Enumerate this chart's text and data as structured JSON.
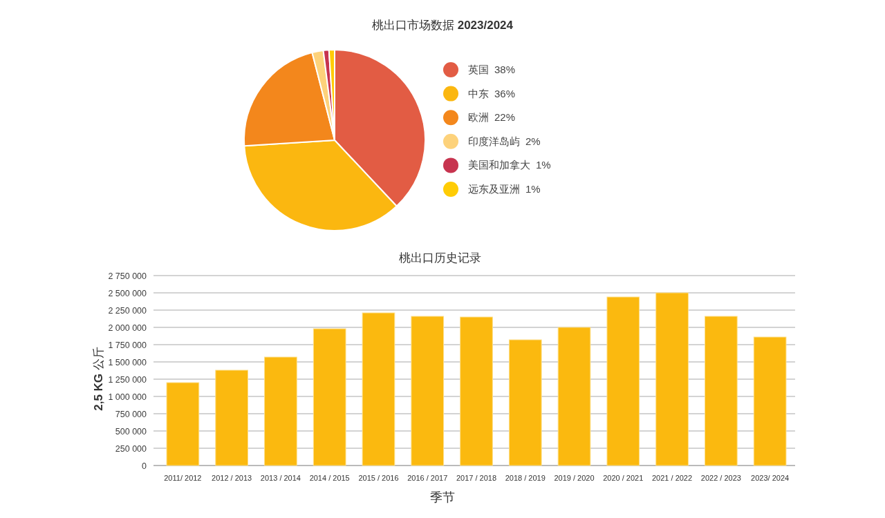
{
  "chart_data": [
    {
      "type": "pie",
      "title": "桃出口市场数据 **2023/2024**",
      "categories": [
        "英国",
        "中东",
        "欧洲",
        "印度洋岛屿",
        "美国和加拿大",
        "远东及亚洲"
      ],
      "values": [
        38,
        36,
        22,
        2,
        1,
        1
      ],
      "value_labels": [
        "38%",
        "36%",
        "22%",
        "2%",
        "1%",
        "1%"
      ],
      "colors": [
        "#e25c44",
        "#fbb710",
        "#f3871c",
        "#fdd27b",
        "#c7344f",
        "#ffcc05"
      ],
      "legend": "right"
    },
    {
      "type": "bar",
      "title": "桃出口历史记录",
      "xlabel": "季节",
      "ylabel": "**2,5 KG** 公斤",
      "categories": [
        "2011/ 2012",
        "2012 / 2013",
        "2013 / 2014",
        "2014 / 2015",
        "2015 / 2016",
        "2016 / 2017",
        "2017 / 2018",
        "2018 / 2019",
        "2019 / 2020",
        "2020 / 2021",
        "2021 / 2022",
        "2022 / 2023",
        "2023/ 2024"
      ],
      "values": [
        1200000,
        1380000,
        1570000,
        1980000,
        2210000,
        2160000,
        2150000,
        1820000,
        2000000,
        2440000,
        2500000,
        2160000,
        1860000
      ],
      "color": "#fbb90f",
      "ylim": [
        0,
        2750000
      ],
      "yticks": [
        {
          "value": 0,
          "label": "0"
        },
        {
          "value": 250000,
          "label": "250 000"
        },
        {
          "value": 500000,
          "label": "500 000"
        },
        {
          "value": 750000,
          "label": "750 000"
        },
        {
          "value": 1000000,
          "label": "1 000 000"
        },
        {
          "value": 1250000,
          "label": "1 250 000"
        },
        {
          "value": 1500000,
          "label": "1 500 000"
        },
        {
          "value": 1750000,
          "label": "1 750 000"
        },
        {
          "value": 2000000,
          "label": "2 000 000"
        },
        {
          "value": 2250000,
          "label": "2 250 000"
        },
        {
          "value": 2500000,
          "label": "2 500 000"
        },
        {
          "value": 2750000,
          "label": "2 750 000"
        }
      ],
      "grid": "y"
    }
  ]
}
